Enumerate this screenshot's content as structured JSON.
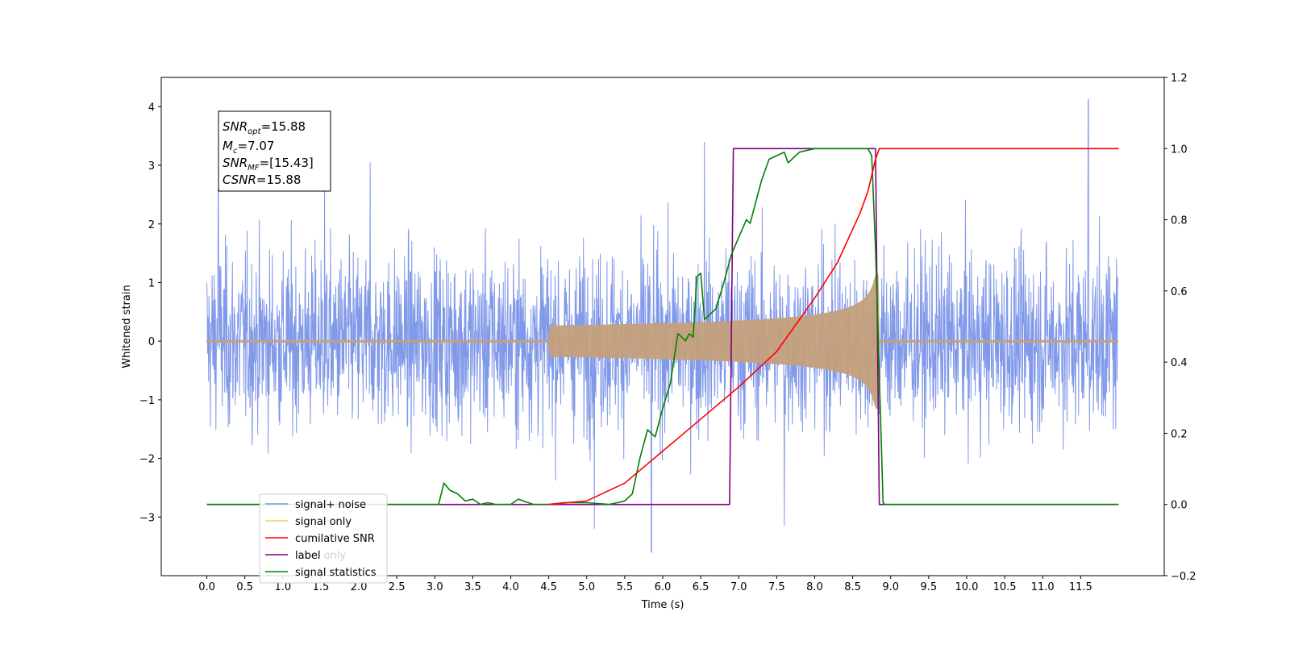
{
  "chart_data": {
    "type": "line",
    "xlabel": "Time (s)",
    "ylabel": "Whitened strain",
    "xlim": [
      -0.6,
      12.6
    ],
    "ylim": [
      -4.0,
      4.5
    ],
    "ylim_right": [
      -0.2,
      1.2
    ],
    "x_ticks": [
      "0.0",
      "0.5",
      "1.0",
      "1.5",
      "2.0",
      "2.5",
      "3.0",
      "3.5",
      "4.0",
      "4.5",
      "5.0",
      "5.5",
      "6.0",
      "6.5",
      "7.0",
      "7.5",
      "8.0",
      "8.5",
      "9.0",
      "9.5",
      "10.0",
      "10.5",
      "11.0",
      "11.5"
    ],
    "y_ticks_left": [
      "4",
      "3",
      "2",
      "1",
      "0",
      "−1",
      "−2",
      "−3"
    ],
    "y_ticks_right": [
      "1.2",
      "1.0",
      "0.8",
      "0.6",
      "0.4",
      "0.2",
      "0.0",
      "−0.2"
    ],
    "grid": false,
    "legend_position": "lower-left",
    "annotation": {
      "snr_opt": {
        "main": "SNR",
        "sub": "opt",
        "value": "=15.88"
      },
      "mc": {
        "main": "M",
        "sub": "c",
        "value": "=7.07"
      },
      "snr_mf": {
        "main": "SNR",
        "sub": "MF",
        "value": "=[15.43]"
      },
      "csnr": {
        "main": "CSNR",
        "value": "=15.88"
      }
    },
    "series": [
      {
        "name": "signal+ noise",
        "axis": "left",
        "color": "#7a93e8",
        "envelope": {
          "x_start": 0.0,
          "x_end": 11.99,
          "typical_amplitude": 2.2,
          "peaks": [
            [
              0.15,
              2.6
            ],
            [
              1.55,
              2.9
            ],
            [
              2.15,
              3.05
            ],
            [
              5.1,
              -3.2
            ],
            [
              5.85,
              -3.6
            ],
            [
              6.55,
              3.4
            ],
            [
              7.6,
              -3.15
            ],
            [
              11.6,
              4.12
            ]
          ]
        }
      },
      {
        "name": "signal only",
        "axis": "left",
        "color": "#c4a07c",
        "chirp": {
          "x_start": 4.5,
          "x_peak": 8.85,
          "amplitude_at_peak": 1.15
        }
      },
      {
        "name": "cumilative SNR",
        "axis": "right",
        "color": "#ff0000",
        "x": [
          4.5,
          5.0,
          5.5,
          6.0,
          6.5,
          7.0,
          7.5,
          8.0,
          8.3,
          8.6,
          8.7,
          8.8,
          8.85,
          12.0
        ],
        "y": [
          0.0,
          0.01,
          0.06,
          0.15,
          0.24,
          0.33,
          0.43,
          0.58,
          0.68,
          0.82,
          0.88,
          0.97,
          1.0,
          1.0
        ]
      },
      {
        "name": "label",
        "axis": "right",
        "color": "#800080",
        "x": [
          0.0,
          6.88,
          6.93,
          8.8,
          8.85,
          12.0
        ],
        "y": [
          0.0,
          0.0,
          1.0,
          1.0,
          0.0,
          0.0
        ]
      },
      {
        "name": "label only",
        "axis": "right",
        "color": "#800080",
        "x": [],
        "y": []
      },
      {
        "name": "signal statistics",
        "axis": "right",
        "color": "#008000",
        "x": [
          0.0,
          3.05,
          3.12,
          3.2,
          3.3,
          3.4,
          3.5,
          3.6,
          3.7,
          3.8,
          4.0,
          4.1,
          4.3,
          4.5,
          4.7,
          5.0,
          5.3,
          5.5,
          5.6,
          5.7,
          5.8,
          5.9,
          6.0,
          6.1,
          6.2,
          6.25,
          6.3,
          6.35,
          6.4,
          6.45,
          6.5,
          6.55,
          6.6,
          6.65,
          6.7,
          6.8,
          6.9,
          7.0,
          7.1,
          7.15,
          7.2,
          7.3,
          7.4,
          7.5,
          7.6,
          7.65,
          7.7,
          7.8,
          8.0,
          8.7,
          8.75,
          8.8,
          8.9,
          8.92,
          12.0
        ],
        "y": [
          0.0,
          0.0,
          0.06,
          0.04,
          0.03,
          0.01,
          0.015,
          0.0,
          0.005,
          0.0,
          0.0,
          0.015,
          0.0,
          0.0,
          0.005,
          0.005,
          0.0,
          0.01,
          0.03,
          0.13,
          0.21,
          0.19,
          0.27,
          0.34,
          0.48,
          0.47,
          0.46,
          0.48,
          0.47,
          0.64,
          0.65,
          0.52,
          0.53,
          0.54,
          0.55,
          0.62,
          0.7,
          0.75,
          0.8,
          0.79,
          0.83,
          0.91,
          0.97,
          0.98,
          0.99,
          0.96,
          0.97,
          0.99,
          1.0,
          1.0,
          0.98,
          0.72,
          0.005,
          0.0,
          0.0
        ]
      }
    ]
  }
}
